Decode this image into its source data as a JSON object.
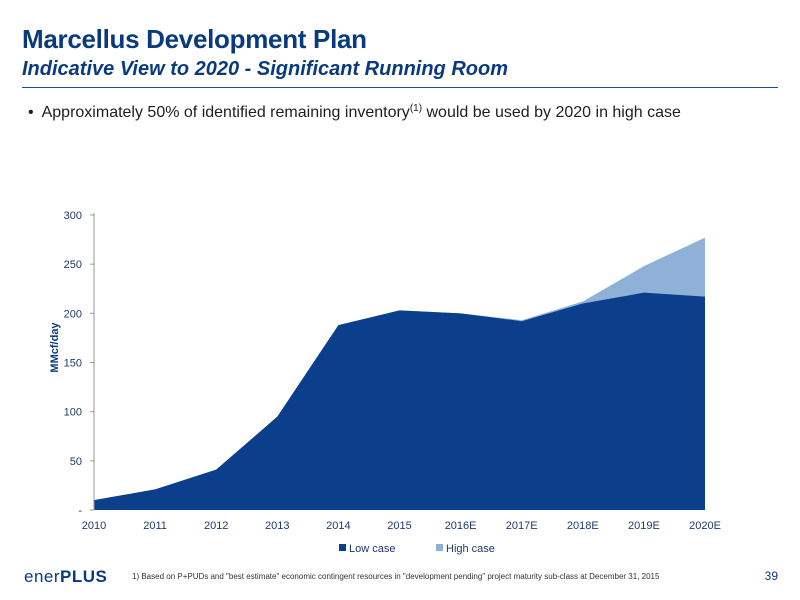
{
  "header": {
    "title": "Marcellus Development Plan",
    "subtitle": "Indicative View to 2020 - Significant Running Room"
  },
  "bullet": {
    "dot": "•",
    "text_before": "Approximately 50% of identified remaining inventory",
    "superscript": "(1)",
    "text_after": " would be used by 2020 in high case"
  },
  "chart_data": {
    "type": "area",
    "categories": [
      "2010",
      "2011",
      "2012",
      "2013",
      "2014",
      "2015",
      "2016E",
      "2017E",
      "2018E",
      "2019E",
      "2020E"
    ],
    "series": [
      {
        "name": "Low case",
        "values": [
          10,
          21,
          41,
          95,
          188,
          203,
          200,
          192,
          210,
          221,
          217
        ]
      },
      {
        "name": "High case",
        "values": [
          10,
          21,
          41,
          95,
          188,
          203,
          200,
          193,
          212,
          248,
          277
        ]
      }
    ],
    "ylabel": "MMcf/day",
    "ylim": [
      0,
      300
    ],
    "yticks": [
      0,
      50,
      100,
      150,
      200,
      250,
      300
    ],
    "ytick_labels": [
      "-",
      "50",
      "100",
      "150",
      "200",
      "250",
      "300"
    ],
    "legend_position": "bottom",
    "grid": false
  },
  "colors": {
    "low_case": "#0b3f8c",
    "high_case": "#8fb1d8",
    "title": "#0a3a7e"
  },
  "footer": {
    "logo_part1": "ener",
    "logo_part2": "PLUS",
    "footnote": "1)    Based on P+PUDs and \"best estimate\" economic contingent resources in \"development pending\" project maturity sub-class at December 31, 2015",
    "page_number": "39"
  }
}
